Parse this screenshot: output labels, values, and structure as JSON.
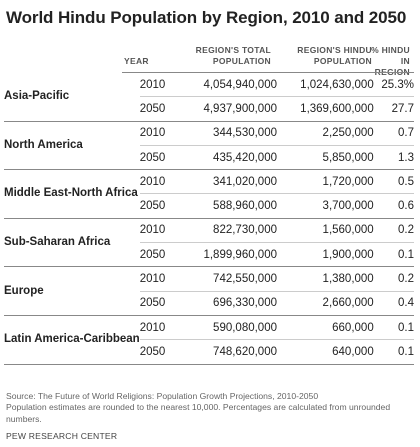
{
  "chart_data": {
    "type": "table",
    "title": "World Hindu Population by Region, 2010 and 2050",
    "columns": [
      "YEAR",
      "REGION'S TOTAL POPULATION",
      "REGION'S HINDU POPULATION",
      "% HINDU IN REGION"
    ],
    "regions": [
      {
        "name": "Asia-Pacific",
        "rows": [
          {
            "year": "2010",
            "total": "4,054,940,000",
            "hindu": "1,024,630,000",
            "pct": "25.3%"
          },
          {
            "year": "2050",
            "total": "4,937,900,000",
            "hindu": "1,369,600,000",
            "pct": "27.7"
          }
        ]
      },
      {
        "name": "North America",
        "rows": [
          {
            "year": "2010",
            "total": "344,530,000",
            "hindu": "2,250,000",
            "pct": "0.7"
          },
          {
            "year": "2050",
            "total": "435,420,000",
            "hindu": "5,850,000",
            "pct": "1.3"
          }
        ]
      },
      {
        "name": "Middle East-North Africa",
        "rows": [
          {
            "year": "2010",
            "total": "341,020,000",
            "hindu": "1,720,000",
            "pct": "0.5"
          },
          {
            "year": "2050",
            "total": "588,960,000",
            "hindu": "3,700,000",
            "pct": "0.6"
          }
        ]
      },
      {
        "name": "Sub-Saharan Africa",
        "rows": [
          {
            "year": "2010",
            "total": "822,730,000",
            "hindu": "1,560,000",
            "pct": "0.2"
          },
          {
            "year": "2050",
            "total": "1,899,960,000",
            "hindu": "1,900,000",
            "pct": "0.1"
          }
        ]
      },
      {
        "name": "Europe",
        "rows": [
          {
            "year": "2010",
            "total": "742,550,000",
            "hindu": "1,380,000",
            "pct": "0.2"
          },
          {
            "year": "2050",
            "total": "696,330,000",
            "hindu": "2,660,000",
            "pct": "0.4"
          }
        ]
      },
      {
        "name": "Latin America-Caribbean",
        "rows": [
          {
            "year": "2010",
            "total": "590,080,000",
            "hindu": "660,000",
            "pct": "0.1"
          },
          {
            "year": "2050",
            "total": "748,620,000",
            "hindu": "640,000",
            "pct": "0.1"
          }
        ]
      }
    ]
  },
  "headers": {
    "year": "YEAR",
    "total_line1": "REGION'S TOTAL",
    "total_line2": "POPULATION",
    "hindu_line1": "REGION'S HINDU",
    "hindu_line2": "POPULATION",
    "pct_line1": "% HINDU",
    "pct_line2": "IN REGION"
  },
  "notes": {
    "source": "Source: The Future of World Religions: Population Growth Projections, 2010-2050",
    "detail": "Population estimates are rounded to the nearest 10,000. Percentages are calculated from unrounded numbers.",
    "brand": "PEW RESEARCH CENTER"
  }
}
